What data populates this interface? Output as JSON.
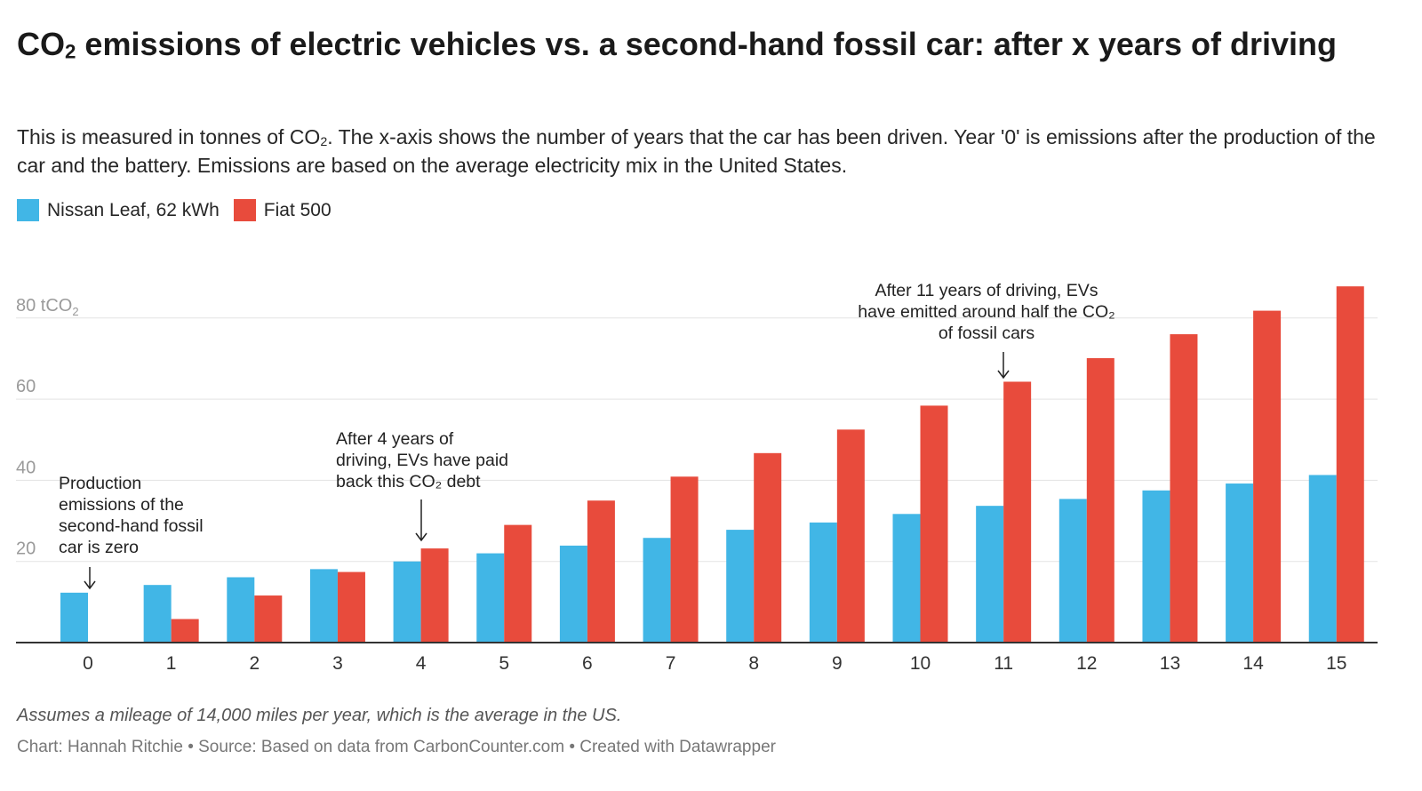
{
  "header": {
    "title_pre": "CO",
    "title_sub": "2",
    "title_post": " emissions of electric vehicles vs. a second-hand fossil car: after x years of driving",
    "subtitle_pre": "This is measured in tonnes of CO",
    "subtitle_sub": "2",
    "subtitle_post": ". The x-axis shows the number of years that the car has been driven. Year '0' is emissions after the production of the car and the battery. Emissions are based on the average electricity mix in the United States."
  },
  "footer": {
    "notes": "Assumes a mileage of 14,000 miles per year, which is the average in the US.",
    "credits": "Chart: Hannah Ritchie • Source: Based on data from CarbonCounter.com • Created with Datawrapper"
  },
  "chart_data": {
    "type": "bar",
    "title": "CO2 emissions of electric vehicles vs. a second-hand fossil car: after x years of driving",
    "xlabel": "",
    "ylabel": "",
    "ylim": [
      0,
      80
    ],
    "grid": true,
    "legend_position": "top-left",
    "categories": [
      "0",
      "1",
      "2",
      "3",
      "4",
      "5",
      "6",
      "7",
      "8",
      "9",
      "10",
      "11",
      "12",
      "13",
      "14",
      "15"
    ],
    "y_ticks": [
      {
        "value": 20,
        "label": "20"
      },
      {
        "value": 40,
        "label": "40"
      },
      {
        "value": 60,
        "label": "60"
      },
      {
        "value": 80,
        "label": "80 tCO",
        "label_sub": "2"
      }
    ],
    "series": [
      {
        "name": "Nissan Leaf, 62 kWh",
        "color": "#41b6e6",
        "values": [
          12.3,
          14.2,
          16.1,
          18.1,
          20.0,
          22.0,
          23.9,
          25.8,
          27.8,
          29.6,
          31.7,
          33.7,
          35.4,
          37.5,
          39.2,
          41.3
        ]
      },
      {
        "name": "Fiat 500",
        "color": "#e84b3c",
        "values": [
          0,
          5.8,
          11.6,
          17.4,
          23.2,
          29.0,
          35.0,
          40.9,
          46.7,
          52.5,
          58.4,
          64.3,
          70.1,
          76.0,
          81.8,
          87.8
        ]
      }
    ],
    "annotations": [
      {
        "lines": [
          "Production",
          "emissions of the",
          "second-hand fossil",
          "car is zero"
        ],
        "category": "0"
      },
      {
        "lines": [
          "After 4 years of",
          "driving, EVs have paid",
          "back this CO₂ debt"
        ],
        "category": "4"
      },
      {
        "lines": [
          "After 11 years of driving, EVs",
          "have emitted around half the CO₂",
          "of fossil cars"
        ],
        "category": "11"
      }
    ]
  }
}
